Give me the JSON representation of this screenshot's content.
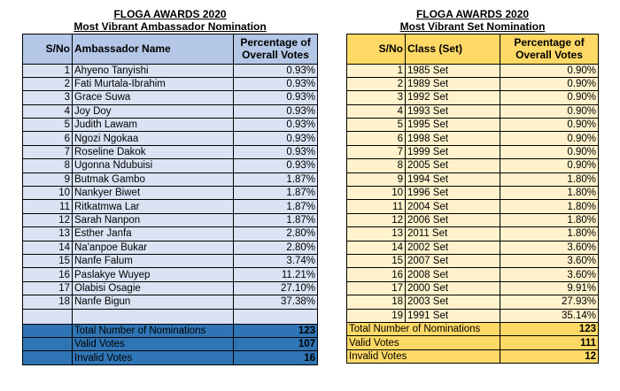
{
  "left": {
    "title": "FLOGA AWARDS 2020",
    "subtitle": "Most Vibrant Ambassador Nomination",
    "headers": {
      "sno": "S/No",
      "name": "Ambassador Name",
      "pct_line1": "Percentage of",
      "pct_line2": "Overall Votes"
    },
    "rows": [
      {
        "sno": "1",
        "name": "Ahyeno Tanyishi",
        "pct": "0.93%"
      },
      {
        "sno": "2",
        "name": "Fati Murtala-Ibrahim",
        "pct": "0.93%"
      },
      {
        "sno": "3",
        "name": "Grace Suwa",
        "pct": "0.93%"
      },
      {
        "sno": "4",
        "name": "Joy Doy",
        "pct": "0.93%"
      },
      {
        "sno": "5",
        "name": "Judith Lawam",
        "pct": "0.93%"
      },
      {
        "sno": "6",
        "name": "Ngozi Ngokaa",
        "pct": "0.93%"
      },
      {
        "sno": "7",
        "name": "Roseline Dakok",
        "pct": "0.93%"
      },
      {
        "sno": "8",
        "name": "Ugonna Ndubuisi",
        "pct": "0.93%"
      },
      {
        "sno": "9",
        "name": "Butmak Gambo",
        "pct": "1.87%"
      },
      {
        "sno": "10",
        "name": "Nankyer Biwet",
        "pct": "1.87%"
      },
      {
        "sno": "11",
        "name": "Ritkatmwa Lar",
        "pct": "1.87%"
      },
      {
        "sno": "12",
        "name": "Sarah Nanpon",
        "pct": "1.87%"
      },
      {
        "sno": "13",
        "name": "Esther Janfa",
        "pct": "2.80%"
      },
      {
        "sno": "14",
        "name": "Na'anpoe Bukar",
        "pct": "2.80%"
      },
      {
        "sno": "15",
        "name": "Nanfe Falum",
        "pct": "3.74%"
      },
      {
        "sno": "16",
        "name": "Paslakye Wuyep",
        "pct": "11.21%"
      },
      {
        "sno": "17",
        "name": "Olabisi Osagie",
        "pct": "27.10%"
      },
      {
        "sno": "18",
        "name": "Nanfe Bigun",
        "pct": "37.38%"
      }
    ],
    "totals": [
      {
        "label": "Total Number of Nominations",
        "value": "123"
      },
      {
        "label": "Valid Votes",
        "value": "107"
      },
      {
        "label": "Invalid Votes",
        "value": "16"
      }
    ]
  },
  "right": {
    "title": "FLOGA AWARDS 2020",
    "subtitle": "Most Vibrant Set Nomination",
    "headers": {
      "sno": "S/No",
      "name": "Class (Set)",
      "pct_line1": "Percentage of",
      "pct_line2": "Overall Votes"
    },
    "rows": [
      {
        "sno": "1",
        "name": "1985 Set",
        "pct": "0.90%"
      },
      {
        "sno": "2",
        "name": "1989 Set",
        "pct": "0.90%"
      },
      {
        "sno": "3",
        "name": "1992 Set",
        "pct": "0.90%"
      },
      {
        "sno": "4",
        "name": "1993 Set",
        "pct": "0.90%"
      },
      {
        "sno": "5",
        "name": "1995 Set",
        "pct": "0.90%"
      },
      {
        "sno": "6",
        "name": "1998 Set",
        "pct": "0.90%"
      },
      {
        "sno": "7",
        "name": "1999 Set",
        "pct": "0.90%"
      },
      {
        "sno": "8",
        "name": "2005 Set",
        "pct": "0.90%"
      },
      {
        "sno": "9",
        "name": "1994 Set",
        "pct": "1.80%"
      },
      {
        "sno": "10",
        "name": "1996 Set",
        "pct": "1.80%"
      },
      {
        "sno": "11",
        "name": "2004 Set",
        "pct": "1.80%"
      },
      {
        "sno": "12",
        "name": "2006 Set",
        "pct": "1.80%"
      },
      {
        "sno": "13",
        "name": "2011 Set",
        "pct": "1.80%"
      },
      {
        "sno": "14",
        "name": "2002 Set",
        "pct": "3.60%"
      },
      {
        "sno": "15",
        "name": "2007 Set",
        "pct": "3.60%"
      },
      {
        "sno": "16",
        "name": "2008 Set",
        "pct": "3.60%"
      },
      {
        "sno": "17",
        "name": "2000 Set",
        "pct": "9.91%"
      },
      {
        "sno": "18",
        "name": "2003 Set",
        "pct": "27.93%"
      },
      {
        "sno": "19",
        "name": "1991 Set",
        "pct": "35.14%"
      }
    ],
    "totals": [
      {
        "label": "Total Number of Nominations",
        "value": "123"
      },
      {
        "label": "Valid Votes",
        "value": "111"
      },
      {
        "label": "Invalid Votes",
        "value": "12"
      }
    ]
  }
}
